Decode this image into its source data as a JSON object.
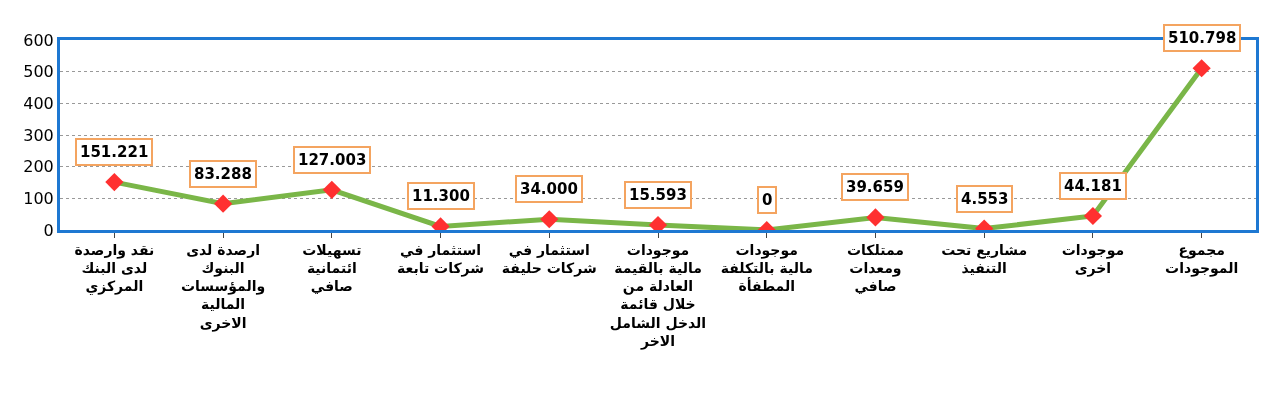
{
  "chart_data": {
    "type": "line",
    "categories": [
      "نقد وارصدة\nلدى البنك\nالمركزي",
      "ارصدة لدى\nالبنوك\nوالمؤسسات\nالمالية\nالاخرى",
      "تسهيلات\nائتمانية\nصافي",
      "استثمار في\nشركات تابعة",
      "استثمار في\nشركات حليفة",
      "موجودات\nمالية بالقيمة\nالعادلة من\nخلال قائمة\nالدخل الشامل\nالاخر",
      "موجودات\nمالية بالتكلفة\nالمطفأة",
      "ممتلكات\nومعدات\nصافي",
      "مشاريع تحت\nالتنفيذ",
      "موجودات\nاخرى",
      "مجموع\nالموجودات"
    ],
    "series": [
      {
        "color": "#7ab648",
        "colors": [
          "#ff3030",
          "#ff3030",
          "#ff3030",
          "#ff3030",
          "#ff3030",
          "#ff3030",
          "#ff3030",
          "#ff3030",
          "#ff3030",
          "#ff3030",
          "#ff3030"
        ],
        "values": [
          151.221,
          83.288,
          127.003,
          11.3,
          34.0,
          15.593,
          0,
          39.659,
          4.553,
          44.181,
          510.798
        ],
        "value_labels": [
          "151.221",
          "83.288",
          "127.003",
          "11.300",
          "34.000",
          "15.593",
          "0",
          "39.659",
          "4.553",
          "44.181",
          "510.798"
        ]
      }
    ],
    "ylim": [
      0,
      600
    ],
    "yticks": [
      0,
      100,
      200,
      300,
      400,
      500,
      600
    ],
    "grid": "y",
    "marker": "diamond",
    "line_style": "solid"
  }
}
